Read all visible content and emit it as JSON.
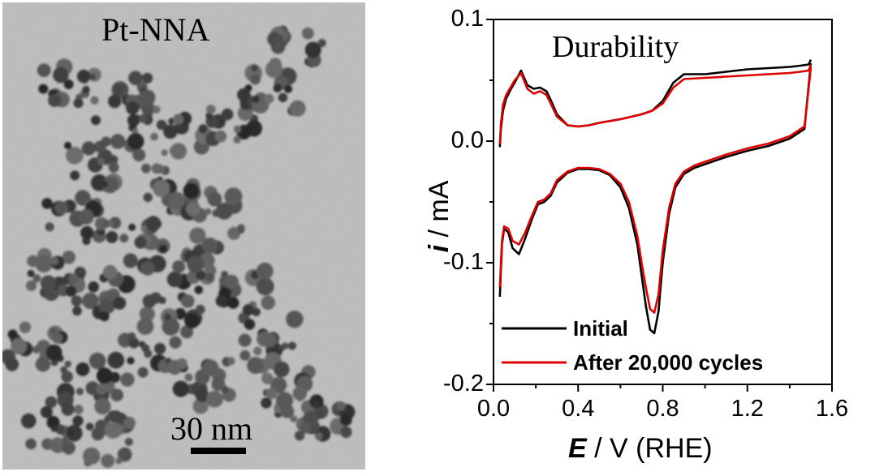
{
  "figure": {
    "tem_label": "Pt-NNA",
    "scale_label": "30 nm"
  },
  "chart_data": {
    "type": "line",
    "title": "Durability",
    "xlabel_symbol": "E",
    "xlabel_rest": " / V (RHE)",
    "ylabel_symbol": "i",
    "ylabel_rest": " / mA",
    "xlim": [
      0.0,
      1.6
    ],
    "ylim": [
      -0.2,
      0.1
    ],
    "xticks": [
      "0.0",
      "0.4",
      "0.8",
      "1.2",
      "1.6"
    ],
    "yticks": [
      "0.1",
      "0.0",
      "-0.1",
      "-0.2"
    ],
    "legend_position": "bottom-left",
    "series": [
      {
        "name": "Initial",
        "color": "#000000",
        "anodic": {
          "x": [
            0.03,
            0.035,
            0.045,
            0.06,
            0.08,
            0.1,
            0.13,
            0.16,
            0.19,
            0.22,
            0.25,
            0.27,
            0.3,
            0.35,
            0.4,
            0.45,
            0.5,
            0.6,
            0.7,
            0.75,
            0.8,
            0.85,
            0.9,
            1.0,
            1.1,
            1.2,
            1.3,
            1.4,
            1.45,
            1.49,
            1.5
          ],
          "y": [
            -0.005,
            0.01,
            0.025,
            0.035,
            0.042,
            0.048,
            0.058,
            0.046,
            0.043,
            0.044,
            0.041,
            0.034,
            0.022,
            0.013,
            0.012,
            0.013,
            0.015,
            0.018,
            0.022,
            0.025,
            0.033,
            0.048,
            0.055,
            0.055,
            0.057,
            0.059,
            0.06,
            0.061,
            0.062,
            0.063,
            0.067
          ]
        },
        "cathodic": {
          "x": [
            1.5,
            1.47,
            1.4,
            1.3,
            1.2,
            1.1,
            1.0,
            0.95,
            0.9,
            0.86,
            0.83,
            0.8,
            0.78,
            0.76,
            0.74,
            0.72,
            0.7,
            0.68,
            0.64,
            0.6,
            0.55,
            0.5,
            0.45,
            0.4,
            0.35,
            0.3,
            0.27,
            0.24,
            0.21,
            0.18,
            0.15,
            0.12,
            0.09,
            0.07,
            0.05,
            0.04,
            0.03
          ],
          "y": [
            0.064,
            0.01,
            0.002,
            -0.004,
            -0.008,
            -0.013,
            -0.019,
            -0.022,
            -0.027,
            -0.038,
            -0.06,
            -0.1,
            -0.14,
            -0.158,
            -0.155,
            -0.135,
            -0.11,
            -0.085,
            -0.055,
            -0.038,
            -0.028,
            -0.024,
            -0.023,
            -0.023,
            -0.026,
            -0.034,
            -0.045,
            -0.05,
            -0.052,
            -0.065,
            -0.08,
            -0.093,
            -0.088,
            -0.075,
            -0.072,
            -0.085,
            -0.128
          ]
        }
      },
      {
        "name": "After 20,000 cycles",
        "color": "#e00000",
        "anodic": {
          "x": [
            0.03,
            0.035,
            0.045,
            0.06,
            0.08,
            0.1,
            0.13,
            0.16,
            0.19,
            0.22,
            0.25,
            0.27,
            0.3,
            0.35,
            0.4,
            0.45,
            0.5,
            0.6,
            0.7,
            0.75,
            0.8,
            0.85,
            0.9,
            1.0,
            1.1,
            1.2,
            1.3,
            1.4,
            1.45,
            1.49,
            1.5
          ],
          "y": [
            -0.002,
            0.014,
            0.03,
            0.038,
            0.044,
            0.05,
            0.056,
            0.043,
            0.039,
            0.041,
            0.038,
            0.031,
            0.02,
            0.013,
            0.012,
            0.013,
            0.015,
            0.018,
            0.022,
            0.025,
            0.031,
            0.044,
            0.051,
            0.052,
            0.053,
            0.054,
            0.055,
            0.056,
            0.057,
            0.058,
            0.063
          ]
        },
        "cathodic": {
          "x": [
            1.5,
            1.47,
            1.4,
            1.3,
            1.2,
            1.1,
            1.0,
            0.95,
            0.9,
            0.86,
            0.83,
            0.8,
            0.78,
            0.76,
            0.74,
            0.72,
            0.7,
            0.68,
            0.64,
            0.6,
            0.55,
            0.5,
            0.45,
            0.4,
            0.35,
            0.3,
            0.27,
            0.24,
            0.21,
            0.18,
            0.15,
            0.12,
            0.09,
            0.07,
            0.05,
            0.04,
            0.03
          ],
          "y": [
            0.06,
            0.012,
            0.004,
            -0.002,
            -0.006,
            -0.011,
            -0.017,
            -0.02,
            -0.025,
            -0.035,
            -0.055,
            -0.09,
            -0.126,
            -0.141,
            -0.138,
            -0.12,
            -0.1,
            -0.078,
            -0.05,
            -0.035,
            -0.027,
            -0.023,
            -0.022,
            -0.022,
            -0.025,
            -0.032,
            -0.043,
            -0.048,
            -0.05,
            -0.062,
            -0.075,
            -0.085,
            -0.082,
            -0.072,
            -0.07,
            -0.082,
            -0.12
          ]
        }
      }
    ]
  }
}
